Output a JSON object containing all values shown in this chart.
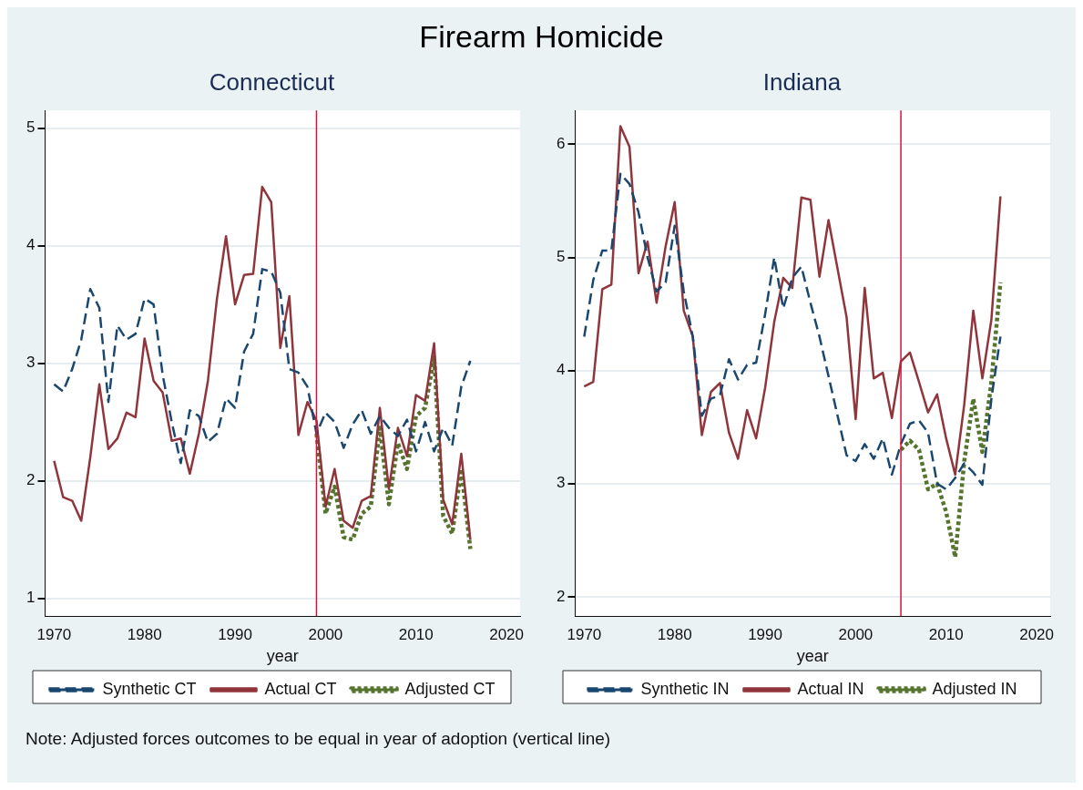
{
  "chart_data": [
    {
      "type": "line",
      "title": "Firearm Homicide",
      "subtitle": "Connecticut",
      "xlabel": "year",
      "x": [
        1970,
        1971,
        1972,
        1973,
        1974,
        1975,
        1976,
        1977,
        1978,
        1979,
        1980,
        1981,
        1982,
        1983,
        1984,
        1985,
        1986,
        1987,
        1988,
        1989,
        1990,
        1991,
        1992,
        1993,
        1994,
        1995,
        1996,
        1997,
        1998,
        1999,
        2000,
        2001,
        2002,
        2003,
        2004,
        2005,
        2006,
        2007,
        2008,
        2009,
        2010,
        2011,
        2012,
        2013,
        2014,
        2015,
        2016
      ],
      "series": [
        {
          "name": "Synthetic CT",
          "color": "#1a476f",
          "line_style": "dashed",
          "values": [
            2.82,
            2.76,
            2.95,
            3.2,
            3.63,
            3.47,
            2.67,
            3.32,
            3.2,
            3.25,
            3.55,
            3.5,
            2.9,
            2.5,
            2.15,
            2.6,
            2.55,
            2.33,
            2.4,
            2.7,
            2.62,
            3.1,
            3.25,
            3.8,
            3.78,
            3.6,
            2.95,
            2.92,
            2.8,
            2.4,
            2.58,
            2.5,
            2.28,
            2.48,
            2.6,
            2.4,
            2.55,
            2.45,
            2.38,
            2.52,
            2.25,
            2.5,
            2.25,
            2.45,
            2.3,
            2.8,
            3.02
          ]
        },
        {
          "name": "Actual CT",
          "color": "#90353b",
          "line_style": "solid",
          "values": [
            2.17,
            1.86,
            1.83,
            1.66,
            2.2,
            2.82,
            2.27,
            2.36,
            2.58,
            2.54,
            3.21,
            2.85,
            2.75,
            2.34,
            2.36,
            2.06,
            2.4,
            2.85,
            3.55,
            4.08,
            3.5,
            3.75,
            3.76,
            4.5,
            4.37,
            3.13,
            3.57,
            2.39,
            2.67,
            2.51,
            1.78,
            2.1,
            1.66,
            1.6,
            1.83,
            1.87,
            2.62,
            1.93,
            2.45,
            2.21,
            2.73,
            2.68,
            3.17,
            1.84,
            1.63,
            2.23,
            1.5
          ]
        },
        {
          "name": "Adjusted CT",
          "color": "#55752f",
          "line_style": "dotted",
          "x": [
            1999,
            2000,
            2001,
            2002,
            2003,
            2004,
            2005,
            2006,
            2007,
            2008,
            2009,
            2010,
            2011,
            2012,
            2013,
            2014,
            2015,
            2016
          ],
          "values": [
            2.4,
            1.72,
            1.95,
            1.52,
            1.5,
            1.72,
            1.78,
            2.45,
            1.8,
            2.32,
            2.1,
            2.55,
            2.62,
            3.05,
            1.7,
            1.55,
            2.1,
            1.42
          ]
        }
      ],
      "xlim": [
        1969,
        2021.5
      ],
      "xticks": [
        1970,
        1980,
        1990,
        2000,
        2010,
        2020
      ],
      "ylim": [
        0.85,
        5.15
      ],
      "yticks": [
        1,
        2,
        3,
        4,
        5
      ],
      "ref_lines": [
        {
          "axis": "x",
          "value": 1999,
          "color": "#d6123c"
        }
      ],
      "grid": "y",
      "legend": "bottom",
      "annotations": [
        "Note: Adjusted forces outcomes to be equal in year of adoption (vertical line)"
      ]
    },
    {
      "type": "line",
      "subtitle": "Indiana",
      "xlabel": "year",
      "x": [
        1970,
        1971,
        1972,
        1973,
        1974,
        1975,
        1976,
        1977,
        1978,
        1979,
        1980,
        1981,
        1982,
        1983,
        1984,
        1985,
        1986,
        1987,
        1988,
        1989,
        1990,
        1991,
        1992,
        1993,
        1994,
        1995,
        1996,
        1997,
        1998,
        1999,
        2000,
        2001,
        2002,
        2003,
        2004,
        2005,
        2006,
        2007,
        2008,
        2009,
        2010,
        2011,
        2012,
        2013,
        2014,
        2015,
        2016
      ],
      "series": [
        {
          "name": "Synthetic IN",
          "color": "#1a476f",
          "line_style": "dashed",
          "values": [
            4.3,
            4.8,
            5.06,
            5.06,
            5.74,
            5.65,
            5.4,
            5.0,
            4.7,
            4.78,
            5.28,
            4.7,
            4.3,
            3.6,
            3.75,
            3.78,
            4.1,
            3.92,
            4.05,
            4.07,
            4.5,
            5.0,
            4.55,
            4.82,
            4.92,
            4.6,
            4.3,
            3.95,
            3.6,
            3.25,
            3.2,
            3.35,
            3.22,
            3.4,
            3.08,
            3.35,
            3.53,
            3.56,
            3.45,
            3.0,
            2.95,
            3.05,
            3.18,
            3.1,
            2.99,
            3.75,
            4.3
          ]
        },
        {
          "name": "Actual IN",
          "color": "#90353b",
          "line_style": "solid",
          "values": [
            3.86,
            3.9,
            4.72,
            4.76,
            6.16,
            5.98,
            4.86,
            5.14,
            4.6,
            5.1,
            5.49,
            4.53,
            4.3,
            3.43,
            3.81,
            3.89,
            3.45,
            3.22,
            3.65,
            3.4,
            3.85,
            4.43,
            4.82,
            4.73,
            5.53,
            5.51,
            4.83,
            5.33,
            4.9,
            4.47,
            3.57,
            4.73,
            3.93,
            3.98,
            3.58,
            4.08,
            4.16,
            3.9,
            3.63,
            3.79,
            3.4,
            3.08,
            3.7,
            4.53,
            3.93,
            4.45,
            5.54
          ]
        },
        {
          "name": "Adjusted IN",
          "color": "#55752f",
          "line_style": "dotted",
          "x": [
            2005,
            2006,
            2007,
            2008,
            2009,
            2010,
            2011,
            2012,
            2013,
            2014,
            2015,
            2016
          ],
          "values": [
            3.3,
            3.38,
            3.3,
            2.95,
            3.0,
            2.75,
            2.35,
            3.2,
            3.75,
            3.28,
            3.9,
            4.78
          ]
        }
      ],
      "xlim": [
        1969,
        2021.5
      ],
      "xticks": [
        1970,
        1980,
        1990,
        2000,
        2010,
        2020
      ],
      "ylim": [
        1.83,
        6.3
      ],
      "yticks": [
        2,
        3,
        4,
        5,
        6
      ],
      "ref_lines": [
        {
          "axis": "x",
          "value": 2005,
          "color": "#d6123c"
        }
      ],
      "grid": "y",
      "legend": "bottom"
    }
  ]
}
